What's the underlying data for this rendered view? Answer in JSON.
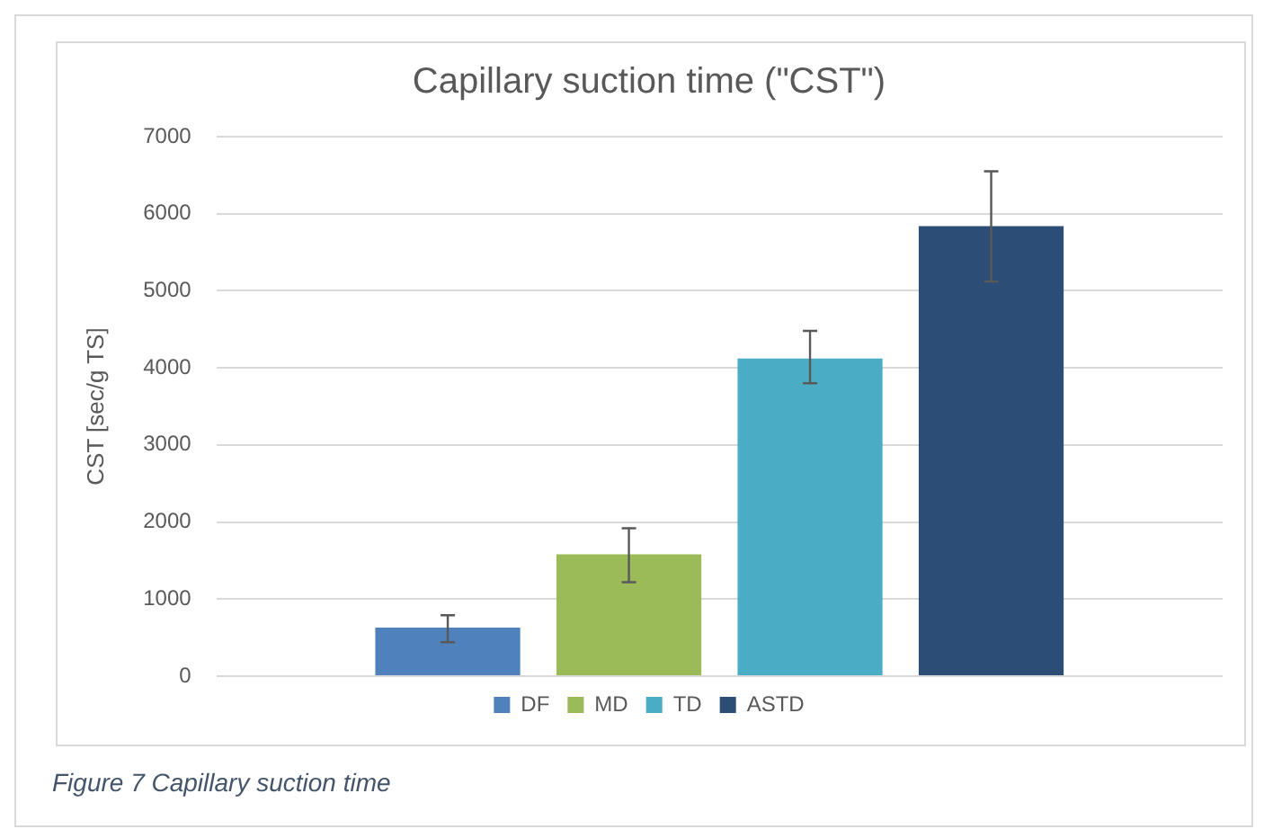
{
  "chart_data": {
    "type": "bar",
    "title": "Capillary suction time (\"CST\")",
    "ylabel": "CST [sec/g TS]",
    "categories": [
      null
    ],
    "series": [
      {
        "name": "DF",
        "color": "#4f81bd",
        "values": [
          630
        ],
        "errors": [
          [
            440,
            790
          ]
        ]
      },
      {
        "name": "MD",
        "color": "#9bbb59",
        "values": [
          1580
        ],
        "errors": [
          [
            1220,
            1920
          ]
        ]
      },
      {
        "name": "TD",
        "color": "#4bacc6",
        "values": [
          4120
        ],
        "errors": [
          [
            3800,
            4480
          ]
        ]
      },
      {
        "name": "ASTD",
        "color": "#2c4d75",
        "values": [
          5840
        ],
        "errors": [
          [
            5120,
            6550
          ]
        ]
      }
    ],
    "ylim": [
      0,
      7000
    ],
    "yticks": [
      0,
      1000,
      2000,
      3000,
      4000,
      5000,
      6000,
      7000
    ],
    "grid": "y",
    "legend": "bottom",
    "annotations": [
      "Figure 7 Capillary suction time"
    ]
  }
}
